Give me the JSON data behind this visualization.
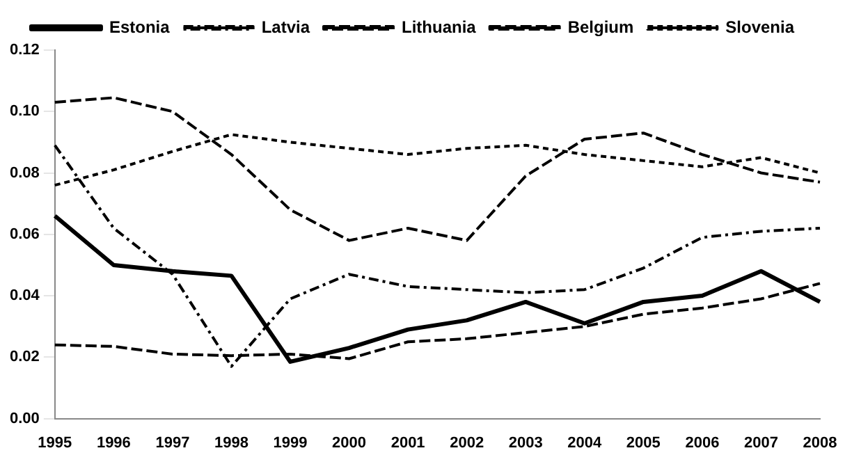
{
  "chart_data": {
    "type": "line",
    "categories": [
      "1995",
      "1996",
      "1997",
      "1998",
      "1999",
      "2000",
      "2001",
      "2002",
      "2003",
      "2004",
      "2005",
      "2006",
      "2007",
      "2008"
    ],
    "series": [
      {
        "name": "Estonia",
        "color": "#000000",
        "line_style": "solid",
        "values": [
          0.066,
          0.05,
          0.048,
          0.0465,
          0.0185,
          0.023,
          0.029,
          0.032,
          0.038,
          0.031,
          0.038,
          0.04,
          0.048,
          0.038
        ]
      },
      {
        "name": "Latvia",
        "color": "#000000",
        "line_style": "dashdot",
        "values": [
          0.089,
          0.062,
          0.047,
          0.017,
          0.039,
          0.047,
          0.043,
          0.042,
          0.041,
          0.042,
          0.049,
          0.059,
          0.061,
          0.062
        ]
      },
      {
        "name": "Lithuania",
        "color": "#000000",
        "line_style": "dashed",
        "values": [
          0.103,
          0.1045,
          0.1,
          0.086,
          0.068,
          0.058,
          0.062,
          0.058,
          0.079,
          0.091,
          0.093,
          0.086,
          0.08,
          0.077
        ]
      },
      {
        "name": "Belgium",
        "color": "#000000",
        "line_style": "dashed",
        "values": [
          0.024,
          0.0235,
          0.021,
          0.0205,
          0.021,
          0.0195,
          0.025,
          0.026,
          0.028,
          0.03,
          0.034,
          0.036,
          0.039,
          0.044
        ]
      },
      {
        "name": "Slovenia",
        "color": "#000000",
        "line_style": "dotted",
        "values": [
          0.076,
          0.081,
          0.087,
          0.0925,
          0.09,
          0.088,
          0.086,
          0.088,
          0.089,
          0.086,
          0.084,
          0.082,
          0.085,
          0.08
        ]
      }
    ],
    "ylim": [
      0,
      0.12
    ],
    "yticks": [
      {
        "value": 0,
        "label": "0.00"
      },
      {
        "value": 0.02,
        "label": "0.02"
      },
      {
        "value": 0.04,
        "label": "0.04"
      },
      {
        "value": 0.06,
        "label": "0.06"
      },
      {
        "value": 0.08,
        "label": "0.08"
      },
      {
        "value": 0.1,
        "label": "0.10"
      },
      {
        "value": 0.12,
        "label": "0.12"
      }
    ],
    "grid": false,
    "legend": "top",
    "marker": "none"
  }
}
